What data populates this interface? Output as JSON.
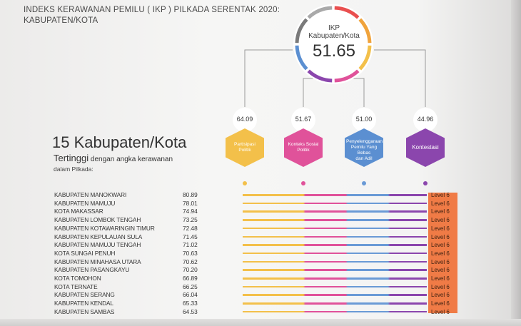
{
  "title": {
    "line1": "INDEKS KERAWANAN PEMILU ( IKP ) PILKADA SERENTAK 2020:",
    "line2": "KABUPATEN/KOTA"
  },
  "ikp": {
    "label1": "IKP",
    "label2": "Kabupaten/Kota",
    "value": "51.65"
  },
  "dimensions": [
    {
      "value": "64.09",
      "label_lines": [
        "Partisipasi",
        "Politik"
      ],
      "color": "#f3c04a",
      "dot": "#f3c04a"
    },
    {
      "value": "51.67",
      "label_lines": [
        "Konteks Sosial",
        "Politik"
      ],
      "color": "#e0529a",
      "dot": "#e0529a"
    },
    {
      "value": "51.00",
      "label_lines": [
        "Penyelenggaraan",
        "Pemilu Yang Bebas",
        "dan Adil"
      ],
      "color": "#5b8fd1",
      "dot": "#6a9ad6"
    },
    {
      "value": "44.96",
      "label_lines": [
        "Kontestasi"
      ],
      "color": "#8b46ad",
      "dot": "#8b46ad"
    }
  ],
  "ring_colors": [
    "#e94f4f",
    "#f0a33c",
    "#f3c04a",
    "#e0529a",
    "#8b46ad",
    "#5b8fd1",
    "#7a7a7a",
    "#a9a9a9"
  ],
  "heading": {
    "big": "15 Kabupaten/Kota",
    "sub_bold": "Tertinggi",
    "sub_rest": " dengan angka kerawanan",
    "sub_line2": "dalam Pilkada:"
  },
  "rows": [
    {
      "name": "KABUPATEN MANOKWARI",
      "value": "80.89",
      "level": "Level 6"
    },
    {
      "name": "KABUPATEN MAMUJU",
      "value": "78.01",
      "level": "Level 6"
    },
    {
      "name": "KOTA MAKASSAR",
      "value": "74.94",
      "level": "Level 6"
    },
    {
      "name": "KABUPATEN LOMBOK TENGAH",
      "value": "73.25",
      "level": "Level 6"
    },
    {
      "name": "KABUPATEN KOTAWARINGIN TIMUR",
      "value": "72.48",
      "level": "Level 6"
    },
    {
      "name": "KABUPATEN KEPULAUAN SULA",
      "value": "71.45",
      "level": "Level 6"
    },
    {
      "name": "KABUPATEN MAMUJU TENGAH",
      "value": "71.02",
      "level": "Level 6"
    },
    {
      "name": "KOTA SUNGAI PENUH",
      "value": "70.63",
      "level": "Level 6"
    },
    {
      "name": "KABUPATEN MINAHASA UTARA",
      "value": "70.62",
      "level": "Level 6"
    },
    {
      "name": "KABUPATEN PASANGKAYU",
      "value": "70.20",
      "level": "Level 6"
    },
    {
      "name": "KOTA TOMOHON",
      "value": "66.89",
      "level": "Level 6"
    },
    {
      "name": "KOTA TERNATE",
      "value": "66.25",
      "level": "Level 6"
    },
    {
      "name": "KABUPATEN SERANG",
      "value": "66.04",
      "level": "Level 6"
    },
    {
      "name": "KABUPATEN KENDAL",
      "value": "65.33",
      "level": "Level 6"
    },
    {
      "name": "KABUPATEN SAMBAS",
      "value": "64.53",
      "level": "Level 6"
    }
  ],
  "bar_segment_colors": [
    "#f3c04a",
    "#e0529a",
    "#6a9ad6",
    "#8b46ad"
  ]
}
